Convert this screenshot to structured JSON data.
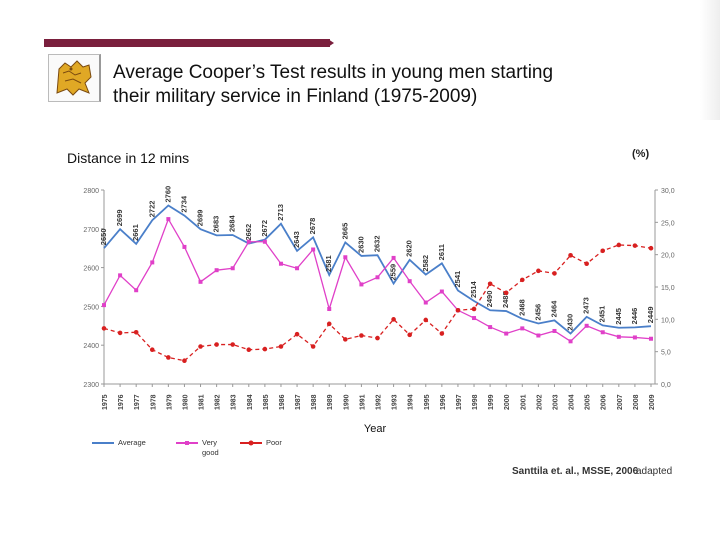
{
  "slide": {
    "title_line1": "Average Cooper’s Test results in young men starting",
    "title_line2": "their military service in Finland (1975-2009)",
    "left_axis_caption": "Distance in 12 mins",
    "right_axis_caption": "(%)",
    "source": "Santtila et. al., MSSE, 2006",
    "adapted": "adapted"
  },
  "colors": {
    "brand_bar": "#7a1f3d",
    "average": "#4a7fc9",
    "very_good": "#e040c8",
    "poor": "#d82020"
  },
  "chart_data": {
    "type": "line",
    "title": "",
    "xlabel": "Year",
    "ylabel": "Distance in 12 mins",
    "y2label": "(%)",
    "ylim": [
      2300,
      2800
    ],
    "y2lim": [
      0,
      30
    ],
    "yticks": [
      2300,
      2400,
      2500,
      2600,
      2700,
      2800
    ],
    "y2ticks": [
      "0,0",
      "5,0",
      "10,0",
      "15,0",
      "20,0",
      "25,0",
      "30,0"
    ],
    "x": [
      "1975",
      "1976",
      "1977",
      "1978",
      "1979",
      "1980",
      "1981",
      "1982",
      "1983",
      "1984",
      "1985",
      "1986",
      "1987",
      "1988",
      "1989",
      "1990",
      "1991",
      "1992",
      "1993",
      "1994",
      "1995",
      "1996",
      "1997",
      "1998",
      "1999",
      "2000",
      "2001",
      "2002",
      "2003",
      "2004",
      "2005",
      "2006",
      "2007",
      "2008",
      "2009"
    ],
    "legend_position": "bottom-left",
    "series": [
      {
        "name": "Average",
        "axis": "left",
        "values": [
          2650,
          2699,
          2661,
          2722,
          2760,
          2734,
          2699,
          2683,
          2684,
          2662,
          2672,
          2713,
          2643,
          2678,
          2581,
          2665,
          2630,
          2632,
          2559,
          2620,
          2582,
          2611,
          2541,
          2514,
          2490,
          2488,
          2468,
          2456,
          2464,
          2430,
          2473,
          2451,
          2445,
          2446,
          2449
        ],
        "labels": [
          "2650",
          "2699",
          "2661",
          "2722",
          "2760",
          "2734",
          "2699",
          "2683",
          "2684",
          "2662",
          "2672",
          "2713",
          "2643",
          "2678",
          "2581",
          "2665",
          "2630",
          "2632",
          "2559",
          "2620",
          "2582",
          "2611",
          "2541",
          "2514",
          "2490",
          "2488",
          "2468",
          "2456",
          "2464",
          "2430",
          "2473",
          "2451",
          "2445",
          "2446",
          "2449"
        ]
      },
      {
        "name": "Very good",
        "axis": "right",
        "values": [
          12.2,
          16.8,
          14.5,
          18.8,
          25.5,
          21.2,
          15.8,
          17.6,
          17.9,
          22.0,
          22.0,
          18.6,
          17.9,
          20.8,
          11.6,
          19.6,
          15.4,
          16.5,
          19.5,
          15.9,
          12.6,
          14.3,
          11.4,
          10.2,
          8.8,
          7.8,
          8.6,
          7.5,
          8.2,
          6.6,
          9.0,
          8.0,
          7.3,
          7.2,
          7.0
        ],
        "labels": []
      },
      {
        "name": "Poor",
        "axis": "right",
        "values": [
          8.6,
          7.9,
          8.0,
          5.3,
          4.1,
          3.6,
          5.8,
          6.1,
          6.1,
          5.3,
          5.4,
          5.8,
          7.7,
          5.8,
          9.3,
          6.9,
          7.5,
          7.1,
          10.0,
          7.6,
          9.9,
          7.8,
          11.4,
          11.6,
          15.5,
          14.1,
          16.1,
          17.5,
          17.1,
          19.9,
          18.6,
          20.6,
          21.5,
          21.4,
          21.0
        ],
        "labels": []
      }
    ],
    "grid": false
  }
}
